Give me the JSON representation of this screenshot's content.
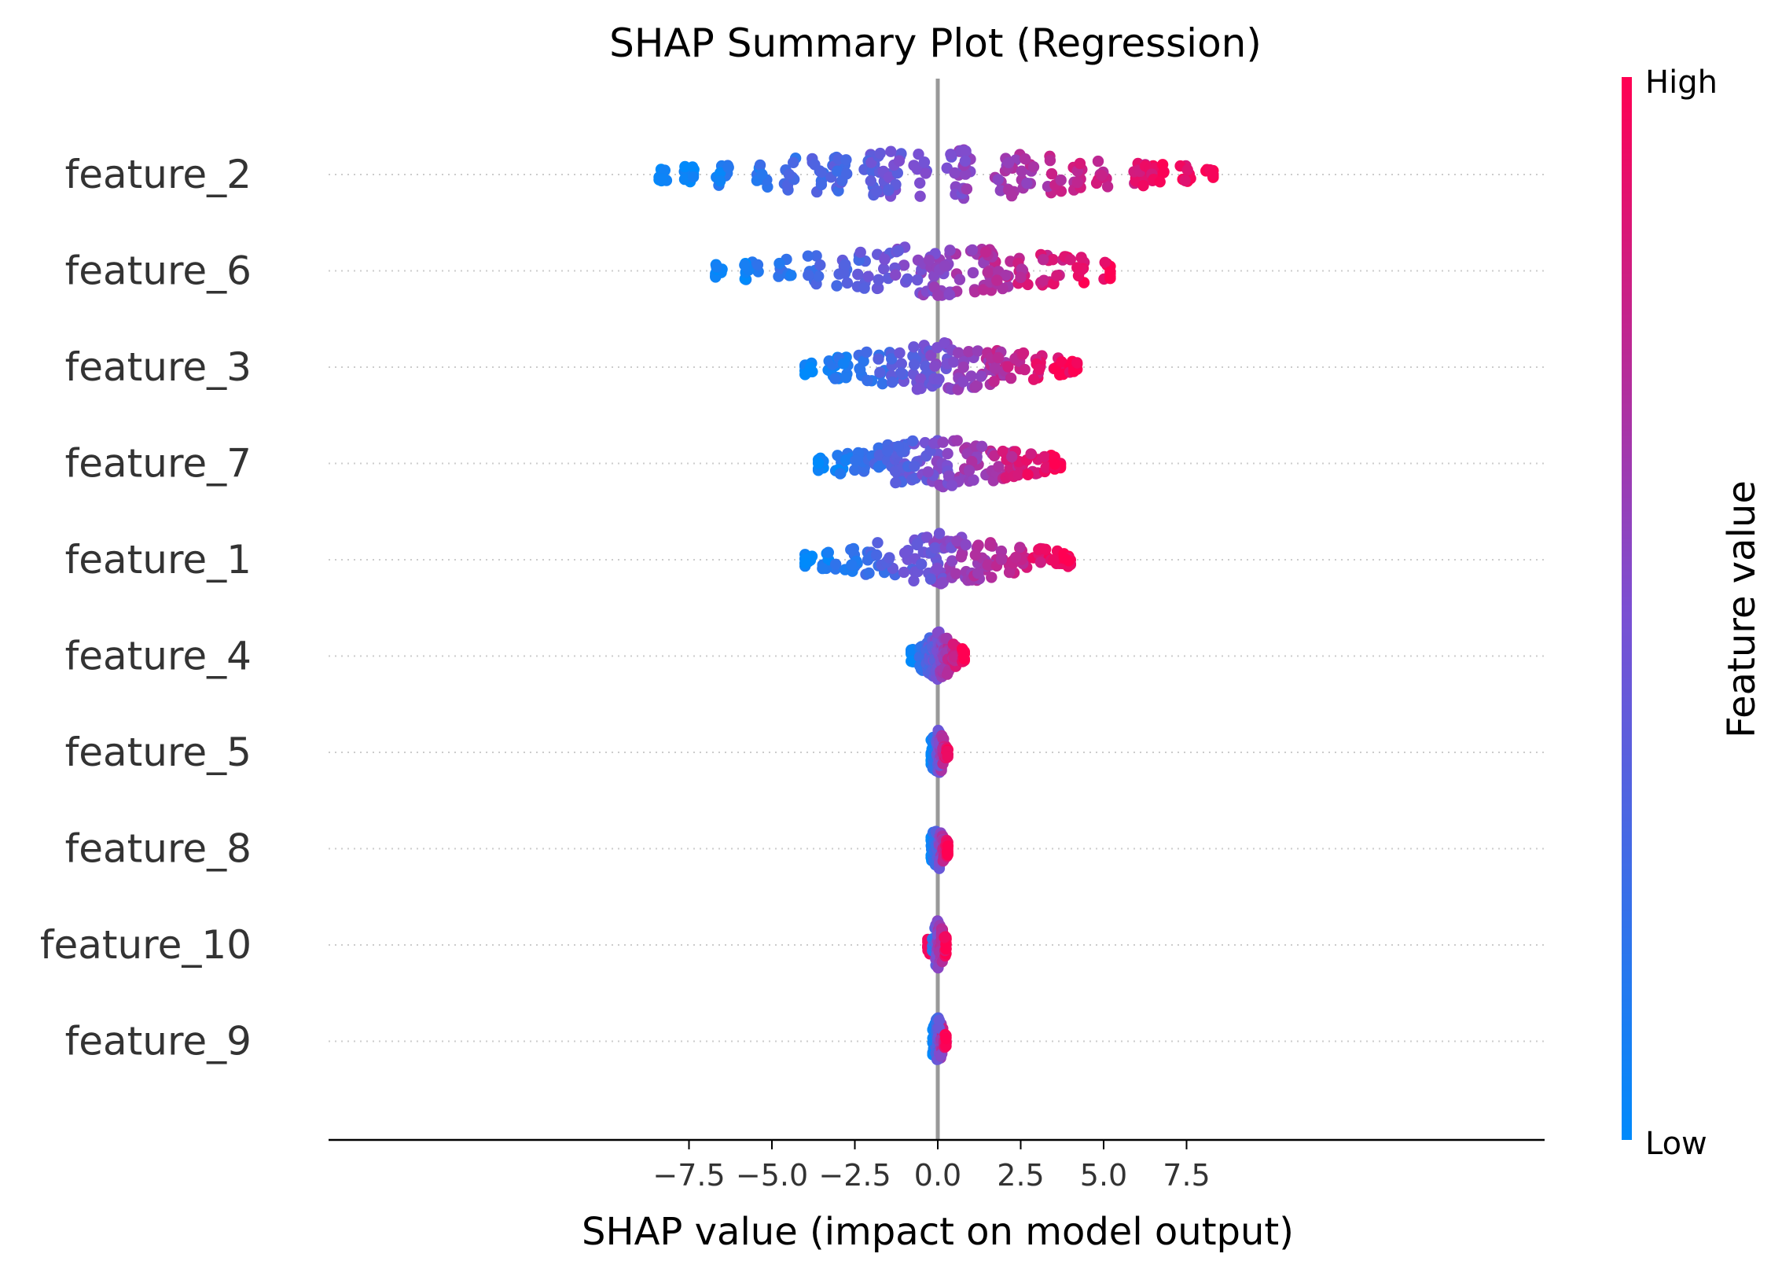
{
  "chart_data": {
    "type": "scatter",
    "subtype": "shap-beeswarm",
    "title": "SHAP Summary Plot (Regression)",
    "xlabel": "SHAP value (impact on model output)",
    "xlim": [
      -9.2,
      9.0
    ],
    "xticks": [
      -7.5,
      -5.0,
      -2.5,
      0.0,
      2.5,
      5.0,
      7.5
    ],
    "xtick_labels": [
      "−7.5",
      "−5.0",
      "−2.5",
      "0.0",
      "2.5",
      "5.0",
      "7.5"
    ],
    "zero_line": 0,
    "features": [
      {
        "name": "feature_2",
        "min": -8.4,
        "max": 8.3,
        "density": [
          -8.4,
          -7.5,
          -6.5,
          -5.3,
          -4.5,
          -3.6,
          -3.0,
          -2.9,
          -2.0,
          -1.8,
          -1.5,
          -1.3,
          -0.5,
          0.5,
          0.7,
          0.9,
          1.9,
          2.3,
          2.7,
          3.5,
          4.2,
          5.0,
          6.0,
          6.3,
          6.6,
          7.4,
          8.3
        ]
      },
      {
        "name": "feature_6",
        "min": -6.7,
        "max": 5.2,
        "density": [
          -6.7,
          -5.6,
          -4.6,
          -3.7,
          -2.9,
          -2.2,
          -1.6,
          -1.1,
          -0.4,
          -0.1,
          0.1,
          0.5,
          1.2,
          1.5,
          1.6,
          2.0,
          2.6,
          3.3,
          3.7,
          4.2,
          5.2
        ]
      },
      {
        "name": "feature_3",
        "min": -4.0,
        "max": 4.2,
        "density": [
          -4.0,
          -3.2,
          -3.0,
          -2.8,
          -2.2,
          -1.6,
          -1.2,
          -0.6,
          -0.5,
          -0.2,
          0.2,
          0.5,
          0.9,
          1.4,
          1.8,
          1.9,
          2.4,
          3.0,
          3.6,
          4.2
        ]
      },
      {
        "name": "feature_7",
        "min": -3.6,
        "max": 3.7,
        "density": [
          -3.6,
          -2.9,
          -2.4,
          -1.9,
          -1.3,
          -1.1,
          -1.0,
          -0.6,
          -0.2,
          0.1,
          0.5,
          1.0,
          1.1,
          1.5,
          2.0,
          2.2,
          2.4,
          2.9,
          3.4,
          3.7
        ]
      },
      {
        "name": "feature_1",
        "min": -4.0,
        "max": 4.0,
        "density": [
          -4.0,
          -3.3,
          -2.6,
          -2.0,
          -1.5,
          -0.9,
          -0.5,
          -0.2,
          0.0,
          0.2,
          0.6,
          1.0,
          1.3,
          1.7,
          2.1,
          2.5,
          3.1,
          3.6,
          4.0
        ]
      },
      {
        "name": "feature_4",
        "min": -0.8,
        "max": 0.8,
        "density": [
          -0.8,
          -0.5,
          -0.3,
          -0.2,
          -0.1,
          0.0,
          0.1,
          0.2,
          0.3,
          0.5,
          0.8
        ]
      },
      {
        "name": "feature_5",
        "min": -0.2,
        "max": 0.3,
        "density": [
          -0.2,
          -0.1,
          0.0,
          0.05,
          0.1,
          0.2,
          0.3
        ]
      },
      {
        "name": "feature_8",
        "min": -0.2,
        "max": 0.3,
        "density": [
          -0.2,
          -0.1,
          0.0,
          0.1,
          0.2,
          0.3
        ]
      },
      {
        "name": "feature_10",
        "min": -0.3,
        "max": 0.25,
        "density": [
          -0.3,
          -0.1,
          0.0,
          0.05,
          0.1,
          0.25
        ]
      },
      {
        "name": "feature_9",
        "min": -0.15,
        "max": 0.25,
        "density": [
          -0.15,
          -0.05,
          0.0,
          0.05,
          0.1,
          0.25
        ]
      }
    ],
    "colorbar": {
      "label": "Feature value",
      "high": "High",
      "low": "Low",
      "low_color": "#008afb",
      "high_color": "#ff0052"
    }
  }
}
